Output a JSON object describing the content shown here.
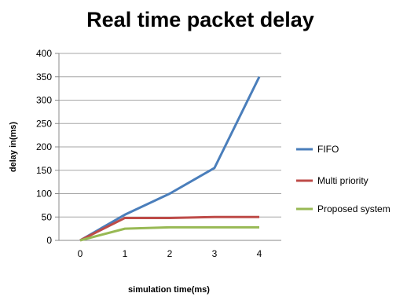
{
  "chart_data": {
    "type": "line",
    "title": "Real time packet delay",
    "xlabel": "simulation time(ms)",
    "ylabel": "delay in(ms)",
    "x": [
      0,
      1,
      2,
      3,
      4
    ],
    "x_tick_labels": [
      "0",
      "1",
      "2",
      "3",
      "4"
    ],
    "y_tick_labels": [
      "0",
      "50",
      "100",
      "150",
      "200",
      "250",
      "300",
      "350",
      "400"
    ],
    "ylim": [
      0,
      400
    ],
    "grid": true,
    "legend_position": "right",
    "series": [
      {
        "name": "FIFO",
        "values": [
          0,
          55,
          100,
          155,
          350
        ],
        "color": "#4a7ebb"
      },
      {
        "name": "Multi priority",
        "values": [
          0,
          48,
          48,
          50,
          50
        ],
        "color": "#be4b48"
      },
      {
        "name": "Proposed system",
        "values": [
          0,
          25,
          28,
          28,
          28
        ],
        "color": "#98b954"
      }
    ]
  }
}
